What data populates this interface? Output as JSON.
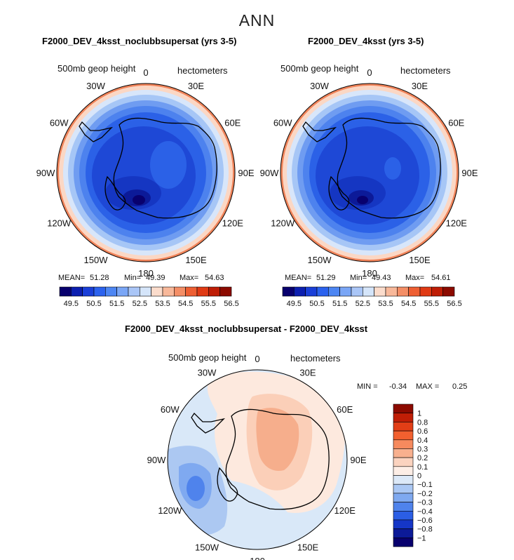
{
  "page_title": "ANN",
  "panels": [
    {
      "title": "F2000_DEV_4ksst_noclubbsupersat (yrs 3-5)",
      "variable": "500mb geop height",
      "units": "hectometers",
      "stats": {
        "mean_label": "MEAN=",
        "mean": "51.28",
        "min_label": "Min=",
        "min": "49.39",
        "max_label": "Max=",
        "max": "54.63"
      }
    },
    {
      "title": "F2000_DEV_4ksst (yrs 3-5)",
      "variable": "500mb geop height",
      "units": "hectometers",
      "stats": {
        "mean_label": "MEAN=",
        "mean": "51.29",
        "min_label": "Min=",
        "min": "49.43",
        "max_label": "Max=",
        "max": "54.61"
      }
    }
  ],
  "diff_panel": {
    "title": "F2000_DEV_4ksst_noclubbsupersat - F2000_DEV_4ksst",
    "variable": "500mb geop height",
    "units": "hectometers",
    "min_label": "MIN =",
    "min": "-0.34",
    "max_label": "MAX =",
    "max": "0.25"
  },
  "longitude_labels": [
    "0",
    "30E",
    "60E",
    "90E",
    "120E",
    "150E",
    "180",
    "150W",
    "120W",
    "90W",
    "60W",
    "30W"
  ],
  "colorbar_top": {
    "tick_labels": [
      "49.5",
      "50.5",
      "51.5",
      "52.5",
      "53.5",
      "54.5",
      "55.5",
      "56.5"
    ],
    "colors": [
      "#08006e",
      "#0c1fb0",
      "#1a3fd8",
      "#2b62ee",
      "#4d86f3",
      "#7aa6f6",
      "#aac6f7",
      "#d5e5fa",
      "#fbdccc",
      "#f8b89a",
      "#f48e66",
      "#ee5f33",
      "#e03a14",
      "#bf1d06",
      "#8c0a00"
    ]
  },
  "colorbar_diff": {
    "tick_labels": [
      "1",
      "0.8",
      "0.6",
      "0.4",
      "0.3",
      "0.2",
      "0.1",
      "0",
      "−0.1",
      "−0.2",
      "−0.3",
      "−0.4",
      "−0.6",
      "−0.8",
      "−1"
    ],
    "colors": [
      "#8c0a00",
      "#c01e06",
      "#e23e16",
      "#f2602f",
      "#f68a5e",
      "#f8b08e",
      "#fbd3bf",
      "#fdeee6",
      "#dce9f8",
      "#abc8f4",
      "#7fa9f0",
      "#4f83ec",
      "#2b5ee5",
      "#1536c7",
      "#0c1a98",
      "#08006e"
    ]
  },
  "colors": {
    "land_outline": "#000000",
    "frame": "#000000"
  }
}
